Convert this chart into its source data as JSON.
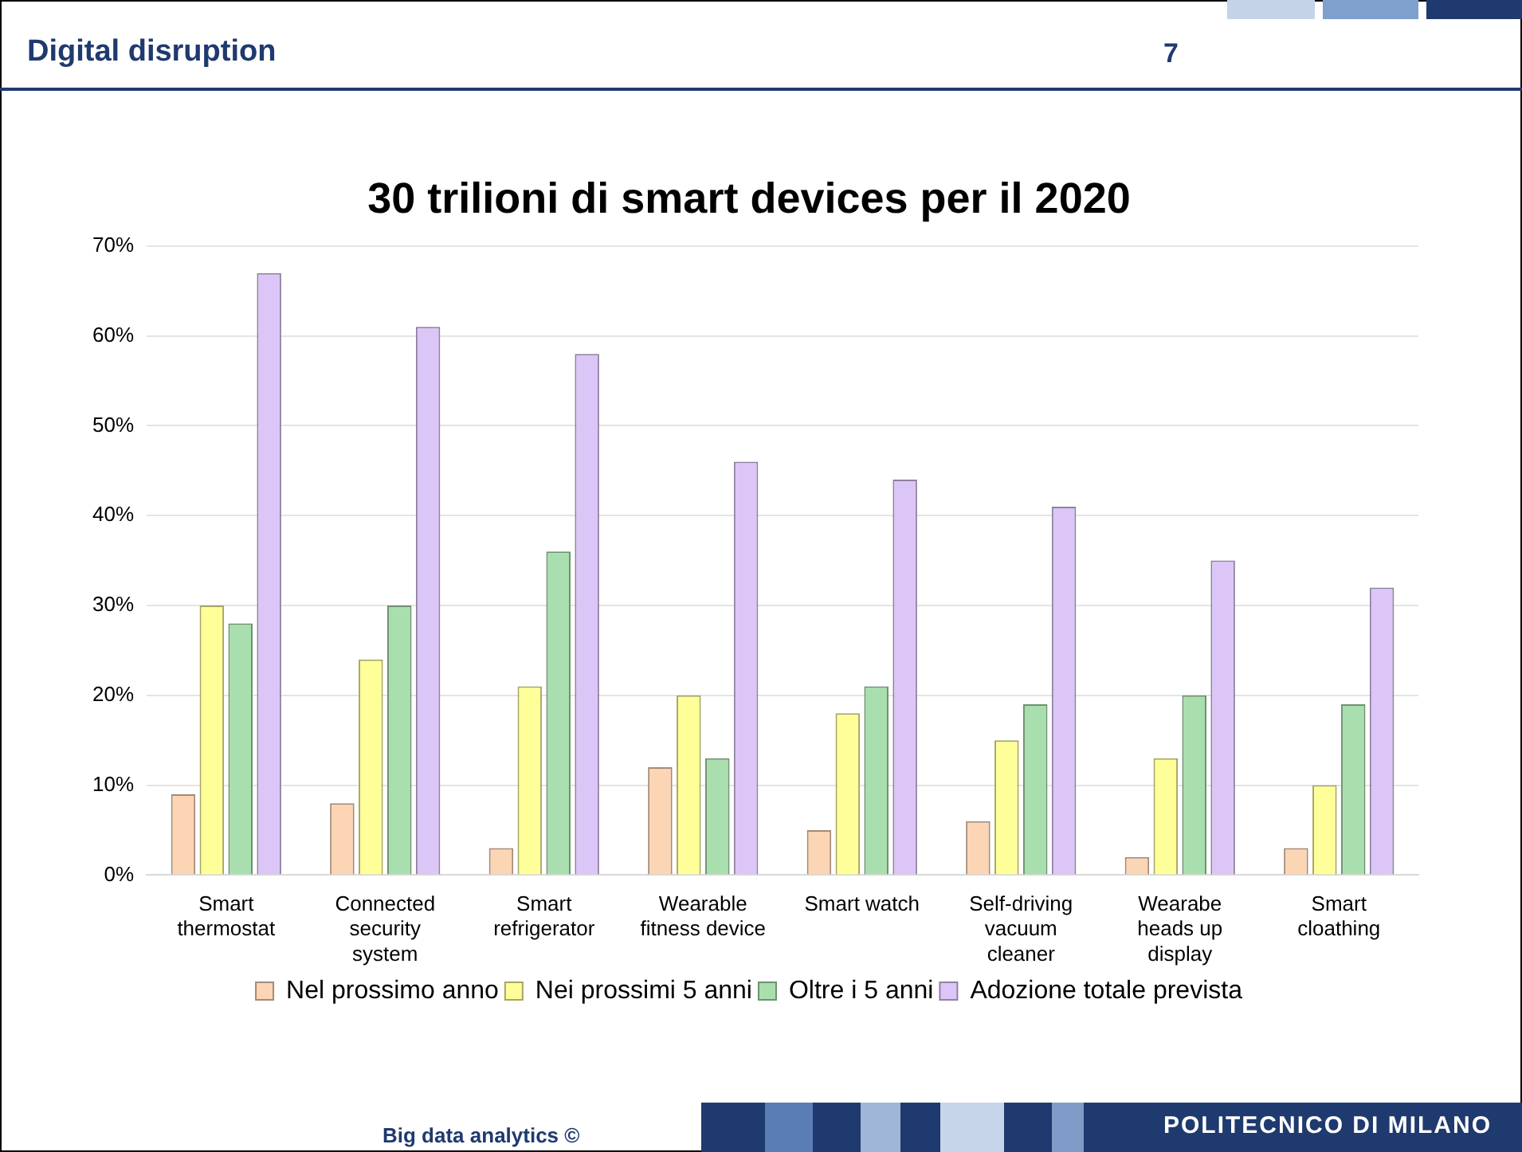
{
  "chart_data": {
    "type": "bar",
    "title": "30 trilioni di smart devices per il 2020",
    "categories": [
      "Smart thermostat",
      "Connected security system",
      "Smart refrigerator",
      "Wearable fitness device",
      "Smart watch",
      "Self-driving vacuum cleaner",
      "Wearabe heads up display",
      "Smart cloathing"
    ],
    "series": [
      {
        "name": "Nel prossimo anno",
        "color": "#fcd5b5",
        "values": [
          9,
          8,
          3,
          12,
          5,
          6,
          2,
          3
        ]
      },
      {
        "name": "Nei prossimi 5 anni",
        "color": "#ffff99",
        "values": [
          30,
          24,
          21,
          20,
          18,
          15,
          13,
          10
        ]
      },
      {
        "name": "Oltre i 5 anni",
        "color": "#a9dfae",
        "values": [
          28,
          30,
          36,
          13,
          21,
          19,
          20,
          19
        ]
      },
      {
        "name": "Adozione totale prevista",
        "color": "#dcc6f7",
        "values": [
          67,
          61,
          58,
          46,
          44,
          41,
          35,
          32
        ]
      }
    ],
    "ylim": [
      0,
      70
    ],
    "yticks": [
      {
        "value": 0,
        "label": "0%"
      },
      {
        "value": 10,
        "label": "10%"
      },
      {
        "value": 20,
        "label": "20%"
      },
      {
        "value": 30,
        "label": "30%"
      },
      {
        "value": 40,
        "label": "40%"
      },
      {
        "value": 50,
        "label": "50%"
      },
      {
        "value": 60,
        "label": "60%"
      },
      {
        "value": 70,
        "label": "70%"
      }
    ],
    "grid": "y",
    "legend": "bottom",
    "annotations": [
      "Digital disruption",
      "7",
      "Big data analytics ©",
      "POLITECNICO DI MILANO"
    ]
  }
}
